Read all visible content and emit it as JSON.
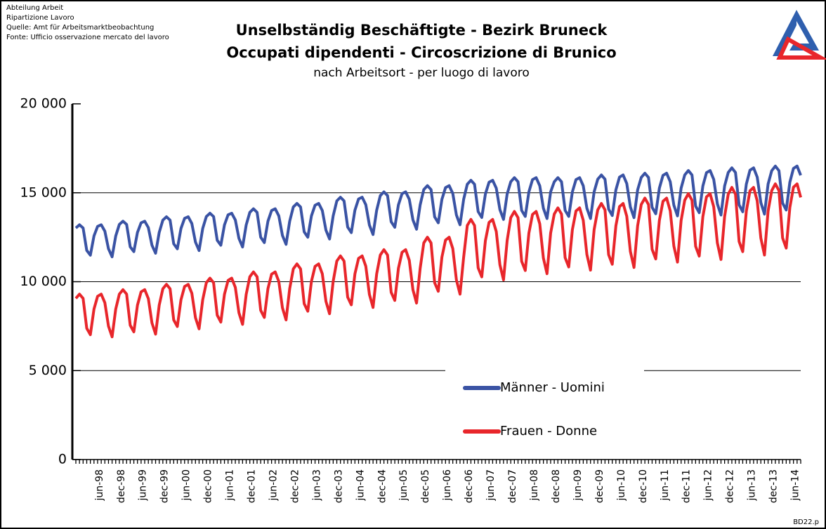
{
  "source_lines": [
    "Abteilung Arbeit",
    "Ripartizione Lavoro",
    "Quelle: Amt für Arbeitsmarktbeobachtung",
    "Fonte: Ufficio osservazione mercato del lavoro"
  ],
  "footnote": "BD22.p",
  "chart_data": {
    "type": "line",
    "title_lines": [
      "Unselbständig Beschäftigte - Bezirk Bruneck",
      "Occupati dipendenti - Circoscrizione di Brunico"
    ],
    "subtitle": "nach Arbeitsort - per luogo di lavoro",
    "ylim": [
      0,
      20000
    ],
    "yticks": [
      0,
      {
        "value": 5000,
        "label": "5 000"
      },
      {
        "value": 10000,
        "label": "10 000"
      },
      {
        "value": 15000,
        "label": "15 000"
      },
      {
        "value": 20000,
        "label": "20 000"
      }
    ],
    "grid": true,
    "legend": "bottom",
    "categories": [
      null,
      null,
      null,
      null,
      null,
      "jun-98",
      null,
      null,
      null,
      null,
      null,
      "dec-98",
      null,
      null,
      null,
      null,
      null,
      "jun-99",
      null,
      null,
      null,
      null,
      null,
      "dec-99",
      null,
      null,
      null,
      null,
      null,
      "jun-00",
      null,
      null,
      null,
      null,
      null,
      "dec-00",
      null,
      null,
      null,
      null,
      null,
      "jun-01",
      null,
      null,
      null,
      null,
      null,
      "dec-01",
      null,
      null,
      null,
      null,
      null,
      "jun-02",
      null,
      null,
      null,
      null,
      null,
      "dec-02",
      null,
      null,
      null,
      null,
      null,
      "jun-03",
      null,
      null,
      null,
      null,
      null,
      "dec-03",
      null,
      null,
      null,
      null,
      null,
      "jun-04",
      null,
      null,
      null,
      null,
      null,
      "dec-04",
      null,
      null,
      null,
      null,
      null,
      "jun-05",
      null,
      null,
      null,
      null,
      null,
      "dec-05",
      null,
      null,
      null,
      null,
      null,
      "jun-06",
      null,
      null,
      null,
      null,
      null,
      "dec-06",
      null,
      null,
      null,
      null,
      null,
      "jun-07",
      null,
      null,
      null,
      null,
      null,
      "dec-07",
      null,
      null,
      null,
      null,
      null,
      "jun-08",
      null,
      null,
      null,
      null,
      null,
      "dec-08",
      null,
      null,
      null,
      null,
      null,
      "jun-09",
      null,
      null,
      null,
      null,
      null,
      "dec-09",
      null,
      null,
      null,
      null,
      null,
      "jun-10",
      null,
      null,
      null,
      null,
      null,
      "dec-10",
      null,
      null,
      null,
      null,
      null,
      "jun-11",
      null,
      null,
      null,
      null,
      null,
      "dec-11",
      null,
      null,
      null,
      null,
      null,
      "jun-12",
      null,
      null,
      null,
      null,
      null,
      "dec-12",
      null,
      null,
      null,
      null,
      null,
      "jun-13",
      null,
      null,
      null,
      null,
      null,
      "dec-13",
      null,
      null,
      null,
      null,
      null,
      "jun-14",
      null,
      null,
      null
    ],
    "series": [
      {
        "name": "Männer - Uomini",
        "color": "#3a53a4",
        "values": [
          13020,
          13200,
          13020,
          11760,
          11490,
          12570,
          13110,
          13200,
          12840,
          11850,
          11400,
          12570,
          13220,
          13400,
          13220,
          11960,
          11690,
          12770,
          13310,
          13400,
          13040,
          12050,
          11600,
          12770,
          13460,
          13650,
          13460,
          12130,
          11850,
          12990,
          13560,
          13650,
          13270,
          12230,
          11750,
          12990,
          13660,
          13850,
          13660,
          12330,
          12050,
          13190,
          13760,
          13850,
          13470,
          12430,
          11950,
          13190,
          13900,
          14100,
          13900,
          12500,
          12200,
          13400,
          14000,
          14100,
          13700,
          12600,
          12100,
          13400,
          14200,
          14400,
          14200,
          12800,
          12500,
          13700,
          14300,
          14400,
          14000,
          12900,
          12400,
          13700,
          14540,
          14750,
          14540,
          13070,
          12760,
          14020,
          14650,
          14750,
          14330,
          13180,
          12650,
          14020,
          14840,
          15050,
          14840,
          13370,
          13060,
          14320,
          14950,
          15050,
          14630,
          13480,
          12950,
          14320,
          15180,
          15400,
          15180,
          13640,
          13310,
          14630,
          15290,
          15400,
          14960,
          13750,
          13200,
          14630,
          15480,
          15700,
          15480,
          13940,
          13610,
          14930,
          15590,
          15700,
          15260,
          14050,
          13500,
          14930,
          15620,
          15850,
          15620,
          14010,
          13670,
          15050,
          15740,
          15850,
          15390,
          14130,
          13550,
          15050,
          15620,
          15850,
          15620,
          14010,
          13670,
          15050,
          15740,
          15850,
          15390,
          14130,
          13550,
          15050,
          15760,
          16000,
          15760,
          14080,
          13720,
          15160,
          15880,
          16000,
          15520,
          14200,
          13600,
          15160,
          15860,
          16100,
          15860,
          14180,
          13820,
          15260,
          15980,
          16100,
          15620,
          14300,
          13700,
          15260,
          16000,
          16250,
          16000,
          14250,
          13880,
          15380,
          16130,
          16250,
          15750,
          14380,
          13750,
          15380,
          16140,
          16400,
          16140,
          14320,
          13930,
          15490,
          16270,
          16400,
          15880,
          14450,
          13800,
          15490,
          16240,
          16500,
          16240,
          14420,
          14030,
          15590,
          16370,
          16500,
          15980
        ]
      },
      {
        "name": "Frauen - Donne",
        "color": "#e8262b",
        "values": [
          9060,
          9300,
          9060,
          7380,
          7020,
          8460,
          9180,
          9300,
          8820,
          7500,
          6900,
          8460,
          9300,
          9550,
          9300,
          7550,
          7180,
          8680,
          9430,
          9550,
          9050,
          7680,
          7050,
          8680,
          9600,
          9850,
          9600,
          7850,
          7480,
          8980,
          9730,
          9850,
          9350,
          7980,
          7350,
          8980,
          9940,
          10200,
          9940,
          8120,
          7730,
          9290,
          10070,
          10200,
          9680,
          8250,
          7600,
          9290,
          10280,
          10550,
          10280,
          8390,
          7990,
          9610,
          10420,
          10550,
          10010,
          8530,
          7850,
          9610,
          10720,
          11000,
          10720,
          8760,
          8340,
          10020,
          10860,
          11000,
          10440,
          8900,
          8200,
          10020,
          11160,
          11450,
          11160,
          9130,
          8700,
          10440,
          11310,
          11450,
          10870,
          9280,
          8550,
          10440,
          11500,
          11800,
          11500,
          9400,
          8950,
          10750,
          11650,
          11800,
          11200,
          9550,
          8800,
          10750,
          12180,
          12500,
          12180,
          9940,
          9460,
          11380,
          12340,
          12500,
          11860,
          10100,
          9300,
          11380,
          13160,
          13500,
          13160,
          10780,
          10270,
          12310,
          13330,
          13500,
          12820,
          10950,
          10100,
          12310,
          13600,
          13950,
          13600,
          11150,
          10630,
          12730,
          13780,
          13950,
          13250,
          11330,
          10450,
          12730,
          13800,
          14150,
          13800,
          11350,
          10830,
          12930,
          13980,
          14150,
          13450,
          11530,
          10650,
          12930,
          14040,
          14400,
          14040,
          11520,
          10980,
          13140,
          14220,
          14400,
          13680,
          11700,
          10800,
          13140,
          14340,
          14700,
          14340,
          11820,
          11280,
          13440,
          14520,
          14700,
          13980,
          12000,
          11100,
          13440,
          14580,
          14950,
          14580,
          11990,
          11440,
          13660,
          14770,
          14950,
          14210,
          12180,
          11250,
          13660,
          14920,
          15300,
          14920,
          12260,
          11690,
          13970,
          15110,
          15300,
          14540,
          12450,
          11500,
          13970,
          15120,
          15500,
          15120,
          12460,
          11890,
          14170,
          15310,
          15500,
          14740
        ]
      }
    ]
  }
}
